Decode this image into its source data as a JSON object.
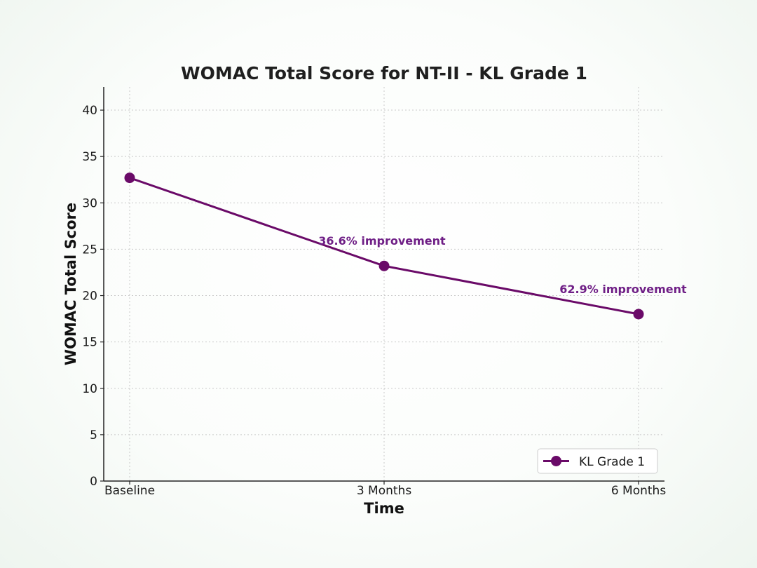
{
  "chart_data": {
    "type": "line",
    "title": "WOMAC Total Score for NT-II - KL Grade 1",
    "xlabel": "Time",
    "ylabel": "WOMAC Total Score",
    "categories": [
      "Baseline",
      "3 Months",
      "6 Months"
    ],
    "series": [
      {
        "name": "KL Grade 1",
        "values": [
          32.7,
          23.2,
          18.0
        ],
        "color": "#6a0a68",
        "marker": "circle"
      }
    ],
    "annotations": [
      {
        "category": "3 Months",
        "text": "36.6% improvement"
      },
      {
        "category": "6 Months",
        "text": "62.9% improvement"
      }
    ],
    "ylim": [
      0,
      42.5
    ],
    "yticks": [
      0,
      5,
      10,
      15,
      20,
      25,
      30,
      35,
      40
    ],
    "grid": true,
    "legend_position": "bottom-right",
    "annotation_color": "#6f1f86"
  }
}
